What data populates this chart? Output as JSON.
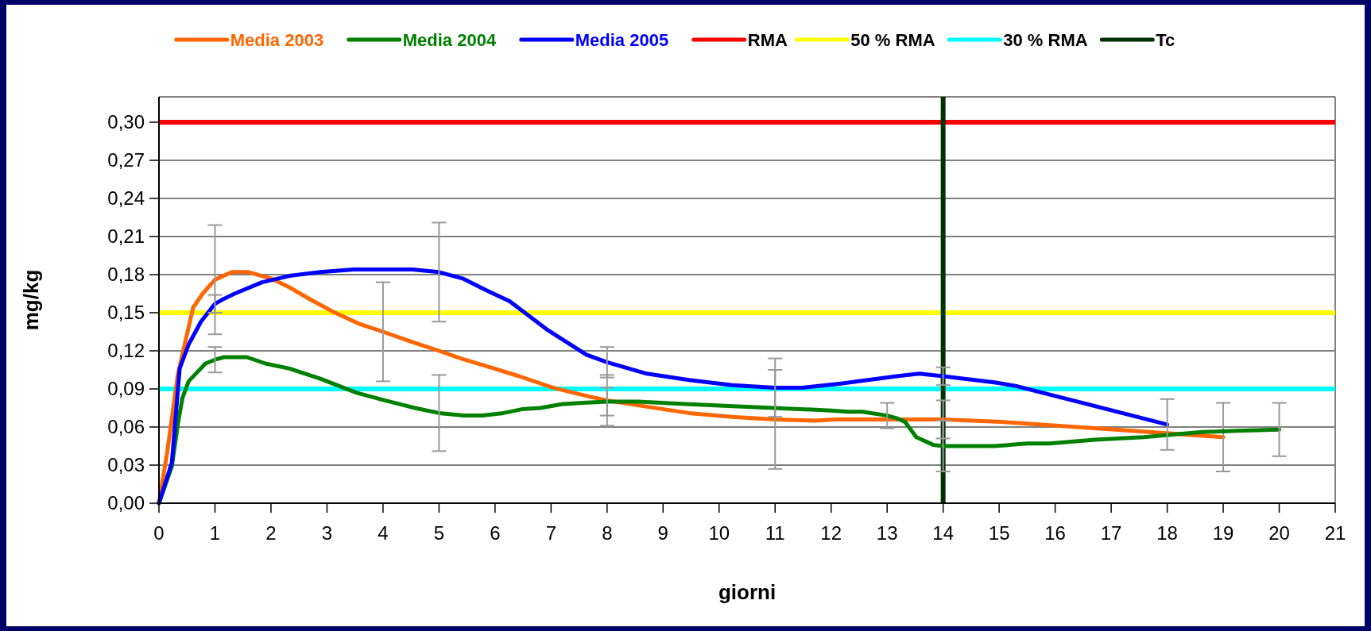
{
  "chart_data": {
    "type": "line",
    "xlabel": "giorni",
    "ylabel": "mg/kg",
    "xlim": [
      0,
      21
    ],
    "xticks": [
      0,
      1,
      2,
      3,
      4,
      5,
      6,
      7,
      8,
      9,
      10,
      11,
      12,
      13,
      14,
      15,
      16,
      17,
      18,
      19,
      20,
      21
    ],
    "ylim": [
      0,
      0.32
    ],
    "yticks": [
      {
        "value": 0,
        "label": "0,00"
      },
      {
        "value": 0.03,
        "label": "0,03"
      },
      {
        "value": 0.06,
        "label": "0,06"
      },
      {
        "value": 0.09,
        "label": "0,09"
      },
      {
        "value": 0.12,
        "label": "0,12"
      },
      {
        "value": 0.15,
        "label": "0,15"
      },
      {
        "value": 0.18,
        "label": "0,18"
      },
      {
        "value": 0.21,
        "label": "0,21"
      },
      {
        "value": 0.24,
        "label": "0,24"
      },
      {
        "value": 0.27,
        "label": "0,27"
      },
      {
        "value": 0.3,
        "label": "0,30"
      }
    ],
    "grid": "y",
    "legend": "top",
    "marker": "none",
    "line_style": "solid",
    "series": [
      {
        "name": "Media 2003",
        "color": "#ff6600",
        "x": [
          0,
          0.15,
          0.34,
          0.61,
          0.78,
          1,
          1.3,
          1.6,
          2,
          2.33,
          2.72,
          3.1,
          3.59,
          4,
          4.52,
          5,
          5.39,
          5.99,
          6.43,
          7.03,
          7.68,
          8,
          8.71,
          9.46,
          10.23,
          11,
          11.7,
          12.1,
          13.01,
          14,
          15.04,
          17.07,
          19
        ],
        "values": [
          0,
          0.041,
          0.102,
          0.154,
          0.165,
          0.176,
          0.182,
          0.182,
          0.177,
          0.17,
          0.16,
          0.151,
          0.141,
          0.135,
          0.127,
          0.12,
          0.114,
          0.106,
          0.1,
          0.091,
          0.084,
          0.081,
          0.076,
          0.071,
          0.068,
          0.066,
          0.065,
          0.066,
          0.066,
          0.066,
          0.064,
          0.058,
          0.052
        ],
        "errors": [
          null,
          null,
          null,
          null,
          null,
          0.043,
          null,
          null,
          null,
          null,
          null,
          null,
          null,
          0.039,
          null,
          null,
          null,
          null,
          null,
          null,
          null,
          0.02,
          null,
          null,
          null,
          0.039,
          null,
          null,
          null,
          0.015,
          null,
          null,
          0.027
        ]
      },
      {
        "name": "Media 2004",
        "color": "#008000",
        "x": [
          0,
          0.23,
          0.34,
          0.42,
          0.53,
          0.83,
          1,
          1.16,
          1.57,
          1.9,
          2.33,
          2.88,
          3.53,
          4.03,
          4.57,
          5,
          5.44,
          5.77,
          6.15,
          6.48,
          6.81,
          7.19,
          7.57,
          8,
          8.55,
          9.46,
          10.48,
          12,
          12.3,
          12.56,
          13,
          13.17,
          13.32,
          13.52,
          13.82,
          14,
          14.92,
          15.5,
          15.9,
          16.71,
          17.58,
          18.59,
          19.25,
          20
        ],
        "values": [
          0,
          0.029,
          0.063,
          0.083,
          0.096,
          0.11,
          0.113,
          0.115,
          0.115,
          0.11,
          0.106,
          0.098,
          0.087,
          0.081,
          0.075,
          0.071,
          0.069,
          0.069,
          0.071,
          0.074,
          0.075,
          0.078,
          0.079,
          0.08,
          0.08,
          0.078,
          0.076,
          0.073,
          0.072,
          0.072,
          0.069,
          0.067,
          0.064,
          0.052,
          0.046,
          0.045,
          0.045,
          0.047,
          0.047,
          0.05,
          0.052,
          0.056,
          0.057,
          0.058
        ],
        "errors": [
          null,
          null,
          null,
          null,
          null,
          null,
          0.01,
          null,
          null,
          null,
          null,
          null,
          null,
          null,
          null,
          0.03,
          null,
          null,
          null,
          null,
          null,
          null,
          null,
          0.011,
          null,
          null,
          null,
          null,
          null,
          null,
          0.01,
          null,
          null,
          null,
          null,
          0.02,
          null,
          null,
          null,
          null,
          null,
          null,
          null,
          0.021
        ]
      },
      {
        "name": "Media 2005",
        "color": "#0000ff",
        "x": [
          0,
          0.23,
          0.37,
          0.53,
          0.75,
          1,
          1.16,
          1.35,
          1.84,
          2.33,
          2.88,
          3.48,
          4.52,
          5,
          5.42,
          5.83,
          6.26,
          6.92,
          7.63,
          8,
          8.71,
          9.46,
          10.23,
          11,
          11.49,
          12.15,
          13.17,
          13.57,
          14,
          14.94,
          15.33,
          18
        ],
        "values": [
          0,
          0.032,
          0.106,
          0.125,
          0.143,
          0.157,
          0.161,
          0.165,
          0.174,
          0.179,
          0.182,
          0.184,
          0.184,
          0.182,
          0.177,
          0.168,
          0.159,
          0.137,
          0.117,
          0.111,
          0.102,
          0.097,
          0.093,
          0.091,
          0.091,
          0.094,
          0.1,
          0.102,
          0.1,
          0.095,
          0.092,
          0.062
        ],
        "errors": [
          null,
          null,
          null,
          null,
          null,
          0.007,
          null,
          null,
          null,
          null,
          null,
          null,
          null,
          0.039,
          null,
          null,
          null,
          null,
          null,
          0.012,
          null,
          null,
          null,
          0.023,
          null,
          null,
          null,
          null,
          0.007,
          null,
          null,
          0.02
        ]
      }
    ],
    "ref_lines": [
      {
        "axis": "y",
        "value": 0.3,
        "label": "RMA",
        "color": "#ff0000"
      },
      {
        "axis": "y",
        "value": 0.15,
        "label": "50 % RMA",
        "color": "#ffff00"
      },
      {
        "axis": "y",
        "value": 0.09,
        "label": "30 % RMA",
        "color": "#00ffff"
      },
      {
        "axis": "x",
        "value": 14,
        "label": "Tc",
        "color": "#003300"
      }
    ]
  }
}
